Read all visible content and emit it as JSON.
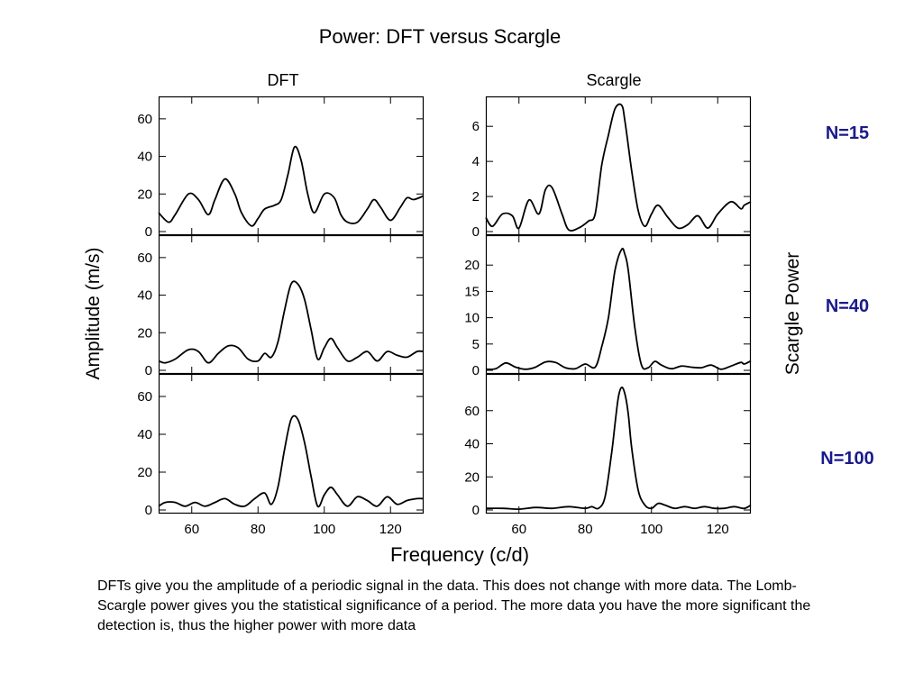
{
  "slide": {
    "title": "Power: DFT versus Scargle",
    "left_column_title": "DFT",
    "right_column_title": "Scargle",
    "left_axis_label": "Amplitude (m/s)",
    "right_axis_label": "Scargle Power",
    "x_axis_label": "Frequency (c/d)",
    "n_labels": [
      "N=15",
      "N=40",
      "N=100"
    ],
    "caption": "DFTs give you the amplitude of a periodic signal in the data. This does not change with more data. The Lomb-Scargle power gives you the statistical significance of a period. The more data you have the more significant the detection is, thus the higher power with more data"
  },
  "chart_data": [
    {
      "type": "line",
      "panel": "DFT N=15",
      "xlim": [
        50,
        130
      ],
      "ylim": [
        0,
        70
      ],
      "xticks": [
        60,
        80,
        100,
        120
      ],
      "yticks": [
        0,
        20,
        40,
        60
      ],
      "series": [
        {
          "x": [
            50,
            53,
            55,
            59,
            62,
            65,
            67,
            70,
            73,
            75,
            78,
            80,
            82,
            85,
            87,
            89,
            91,
            93,
            95,
            97,
            100,
            103,
            105,
            107,
            110,
            113,
            115,
            117,
            120,
            123,
            125,
            127,
            130
          ],
          "y": [
            10,
            5,
            9,
            20,
            17,
            9,
            17,
            28,
            20,
            10,
            3,
            7,
            12,
            14,
            17,
            30,
            45,
            38,
            20,
            10,
            20,
            18,
            9,
            5,
            5,
            12,
            17,
            13,
            6,
            13,
            18,
            17,
            19
          ]
        }
      ]
    },
    {
      "type": "line",
      "panel": "DFT N=40",
      "xlim": [
        50,
        130
      ],
      "ylim": [
        0,
        70
      ],
      "xticks": [
        60,
        80,
        100,
        120
      ],
      "yticks": [
        0,
        20,
        40,
        60
      ],
      "series": [
        {
          "x": [
            50,
            52,
            55,
            59,
            62,
            65,
            68,
            71,
            74,
            77,
            80,
            82,
            84,
            86,
            88,
            90,
            92,
            94,
            96,
            98,
            100,
            102,
            104,
            107,
            110,
            113,
            116,
            119,
            122,
            125,
            128,
            130
          ],
          "y": [
            5,
            4,
            6,
            11,
            10,
            4,
            9,
            13,
            12,
            6,
            5,
            9,
            7,
            15,
            32,
            46,
            46,
            38,
            22,
            6,
            12,
            17,
            12,
            5,
            7,
            10,
            5,
            10,
            8,
            7,
            10,
            10
          ]
        }
      ]
    },
    {
      "type": "line",
      "panel": "DFT N=100",
      "xlim": [
        50,
        130
      ],
      "ylim": [
        0,
        70
      ],
      "xticks": [
        60,
        80,
        100,
        120
      ],
      "yticks": [
        0,
        20,
        40,
        60
      ],
      "series": [
        {
          "x": [
            50,
            52,
            55,
            58,
            61,
            64,
            67,
            70,
            73,
            76,
            79,
            82,
            84,
            86,
            88,
            90,
            92,
            94,
            96,
            98,
            100,
            102,
            104,
            107,
            110,
            113,
            116,
            119,
            122,
            125,
            128,
            130
          ],
          "y": [
            2,
            4,
            4,
            2,
            4,
            2,
            4,
            6,
            3,
            2,
            6,
            9,
            3,
            12,
            32,
            48,
            48,
            36,
            18,
            2,
            8,
            12,
            8,
            2,
            7,
            5,
            2,
            7,
            3,
            5,
            6,
            6
          ]
        }
      ]
    },
    {
      "type": "line",
      "panel": "Scargle N=15",
      "xlim": [
        50,
        130
      ],
      "ylim": [
        0,
        7.5
      ],
      "xticks": [
        60,
        80,
        100,
        120
      ],
      "yticks": [
        0,
        2,
        4,
        6
      ],
      "series": [
        {
          "x": [
            50,
            52,
            55,
            58,
            60,
            63,
            66,
            68,
            70,
            73,
            75,
            78,
            81,
            83,
            85,
            87,
            89,
            91,
            92,
            94,
            96,
            98,
            100,
            102,
            105,
            108,
            111,
            114,
            117,
            120,
            124,
            127,
            128,
            130
          ],
          "y": [
            0.8,
            0.3,
            1.0,
            0.9,
            0.2,
            1.8,
            1.0,
            2.4,
            2.5,
            1.0,
            0.1,
            0.2,
            0.6,
            1.0,
            3.8,
            5.5,
            7.0,
            7.2,
            6.3,
            3.5,
            1.2,
            0.3,
            1.0,
            1.5,
            0.8,
            0.2,
            0.4,
            0.9,
            0.2,
            1.0,
            1.7,
            1.3,
            1.5,
            1.7
          ]
        }
      ]
    },
    {
      "type": "line",
      "panel": "Scargle N=40",
      "xlim": [
        50,
        130
      ],
      "ylim": [
        0,
        25
      ],
      "xticks": [
        60,
        80,
        100,
        120
      ],
      "yticks": [
        0,
        5,
        10,
        15,
        20
      ],
      "series": [
        {
          "x": [
            50,
            53,
            56,
            59,
            62,
            65,
            68,
            71,
            74,
            77,
            80,
            83,
            85,
            87,
            89,
            91,
            92,
            93,
            95,
            97,
            99,
            101,
            103,
            106,
            109,
            112,
            115,
            118,
            121,
            124,
            127,
            128,
            130
          ],
          "y": [
            0.2,
            0.3,
            1.4,
            0.6,
            0.2,
            0.6,
            1.6,
            1.5,
            0.5,
            0.3,
            1.2,
            0.6,
            4.5,
            10,
            19,
            23,
            22,
            19,
            8,
            1,
            0.5,
            1.7,
            1.0,
            0.3,
            0.8,
            0.6,
            0.5,
            1.0,
            0.2,
            0.8,
            1.5,
            1.2,
            1.8
          ]
        }
      ]
    },
    {
      "type": "line",
      "panel": "Scargle N=100",
      "xlim": [
        50,
        130
      ],
      "ylim": [
        0,
        80
      ],
      "xticks": [
        60,
        80,
        100,
        120
      ],
      "yticks": [
        0,
        20,
        40,
        60
      ],
      "series": [
        {
          "x": [
            50,
            55,
            60,
            65,
            70,
            75,
            80,
            82,
            84,
            86,
            88,
            89,
            90,
            91,
            92,
            93,
            94,
            96,
            98,
            100,
            102,
            104,
            107,
            110,
            113,
            116,
            119,
            122,
            125,
            128,
            130
          ],
          "y": [
            1,
            1,
            0.5,
            1.5,
            1,
            2,
            1,
            2,
            1,
            8,
            35,
            52,
            68,
            74,
            70,
            58,
            38,
            12,
            3,
            1,
            4,
            3,
            1,
            2,
            1,
            2,
            1,
            1,
            2,
            1,
            3
          ]
        }
      ]
    }
  ]
}
